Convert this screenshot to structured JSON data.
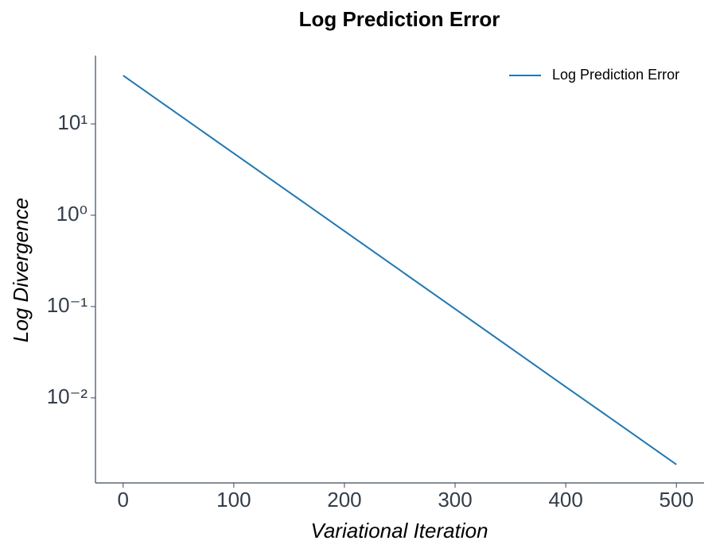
{
  "chart_data": {
    "type": "line",
    "title": "Log Prediction Error",
    "x_label": "Variational Iteration",
    "y_label": "Log Divergence",
    "x": [
      0,
      50,
      100,
      150,
      200,
      250,
      300,
      350,
      400,
      450,
      500
    ],
    "series": [
      {
        "name": "Log Prediction Error",
        "color": "#1f77b4",
        "values": [
          33.9,
          12.7,
          4.76,
          1.79,
          0.67,
          0.251,
          0.0942,
          0.0353,
          0.0132,
          0.00497,
          0.00186
        ]
      }
    ],
    "xlim": [
      -25,
      525
    ],
    "xticks": [
      0,
      100,
      200,
      300,
      400,
      500
    ],
    "ylim": [
      0.00117,
      56
    ],
    "y_scale": "log",
    "yticks": [
      {
        "value": 0.01,
        "label": "10⁻²"
      },
      {
        "value": 0.1,
        "label": "10⁻¹"
      },
      {
        "value": 1,
        "label": "10⁰"
      },
      {
        "value": 10,
        "label": "10¹"
      }
    ],
    "grid": false,
    "legend": "upper right"
  }
}
